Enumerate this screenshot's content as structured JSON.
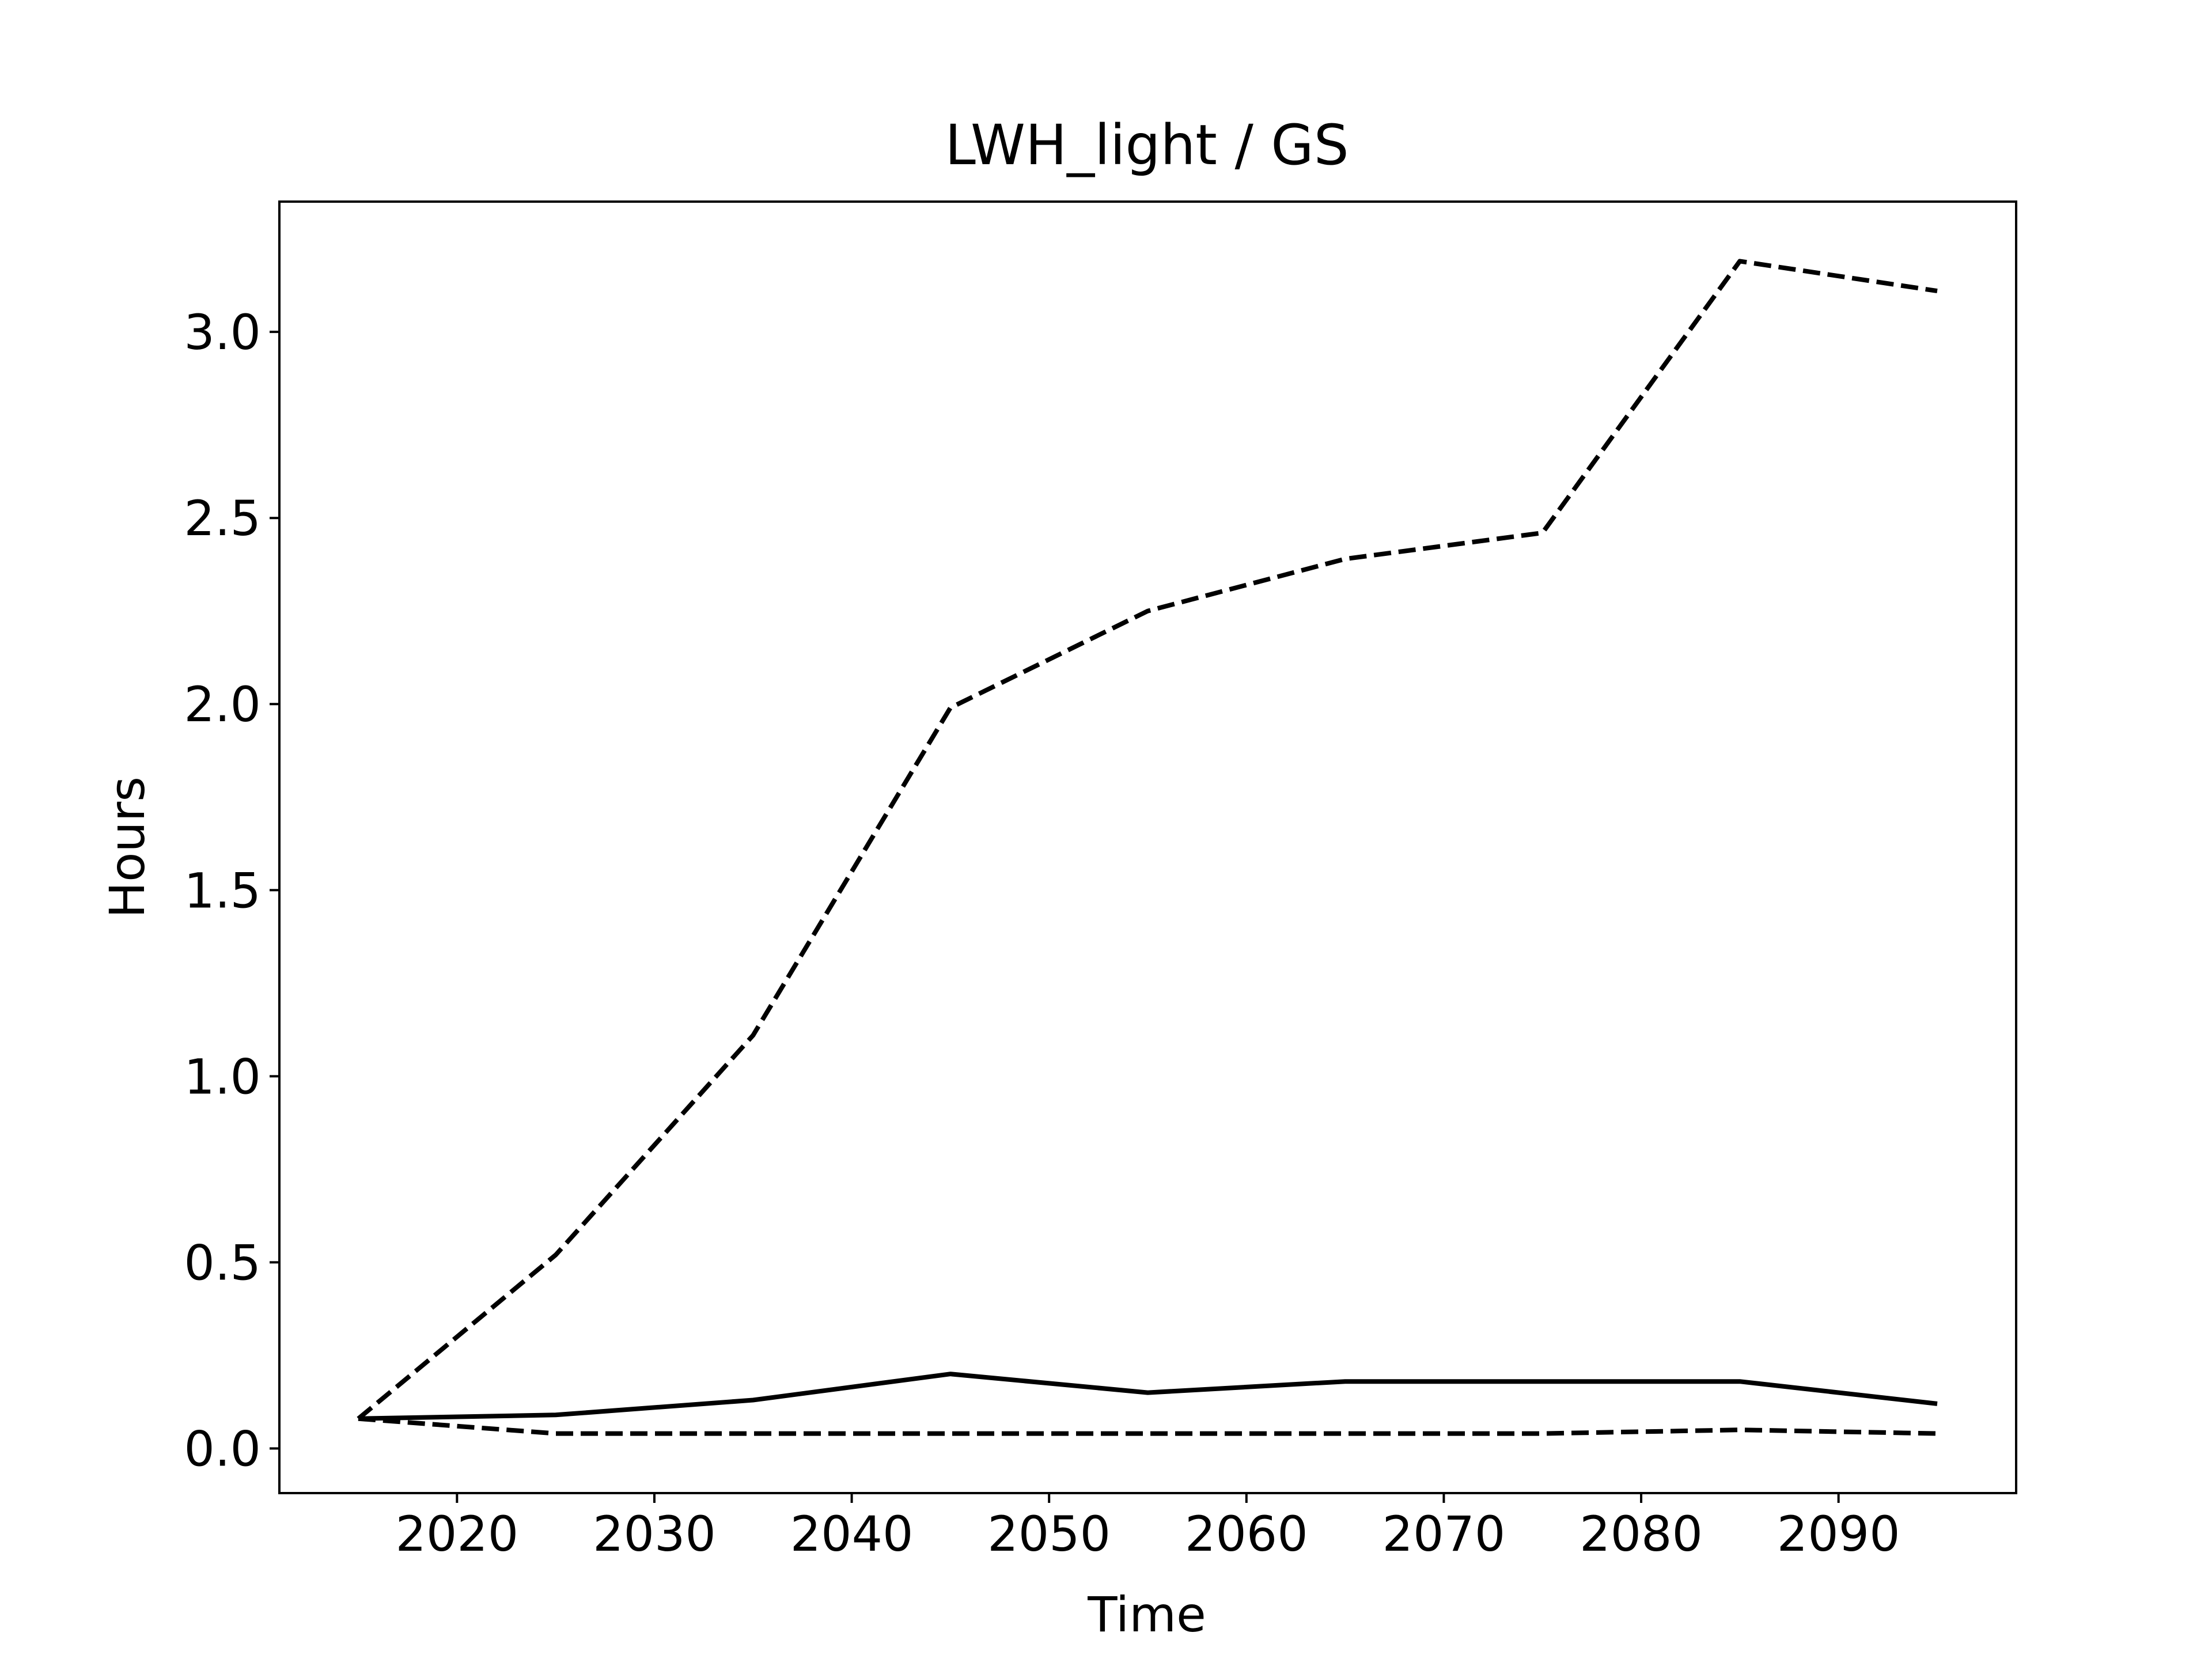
{
  "chart_data": {
    "type": "line",
    "title": "LWH_light / GS",
    "xlabel": "Time",
    "ylabel": "Hours",
    "xlim": [
      2011,
      2099
    ],
    "ylim": [
      -0.12,
      3.35
    ],
    "grid": false,
    "x": [
      2015,
      2025,
      2035,
      2045,
      2055,
      2065,
      2075,
      2085,
      2095
    ],
    "x_ticks": [
      2020,
      2030,
      2040,
      2050,
      2060,
      2070,
      2080,
      2090
    ],
    "x_tick_labels": [
      "2020",
      "2030",
      "2040",
      "2050",
      "2060",
      "2070",
      "2080",
      "2090"
    ],
    "y_ticks": [
      0.0,
      0.5,
      1.0,
      1.5,
      2.0,
      2.5,
      3.0
    ],
    "y_tick_labels": [
      "0.0",
      "0.5",
      "1.0",
      "1.5",
      "2.0",
      "2.5",
      "3.0"
    ],
    "series": [
      {
        "style": "dashed",
        "color": "#000000",
        "values": [
          0.08,
          0.52,
          1.11,
          1.99,
          2.25,
          2.39,
          2.46,
          3.19,
          3.11
        ]
      },
      {
        "style": "solid",
        "color": "#000000",
        "values": [
          0.08,
          0.09,
          0.13,
          0.2,
          0.15,
          0.18,
          0.18,
          0.18,
          0.12
        ]
      },
      {
        "style": "dashed",
        "color": "#000000",
        "values": [
          0.08,
          0.04,
          0.04,
          0.04,
          0.04,
          0.04,
          0.04,
          0.05,
          0.04
        ]
      }
    ]
  }
}
